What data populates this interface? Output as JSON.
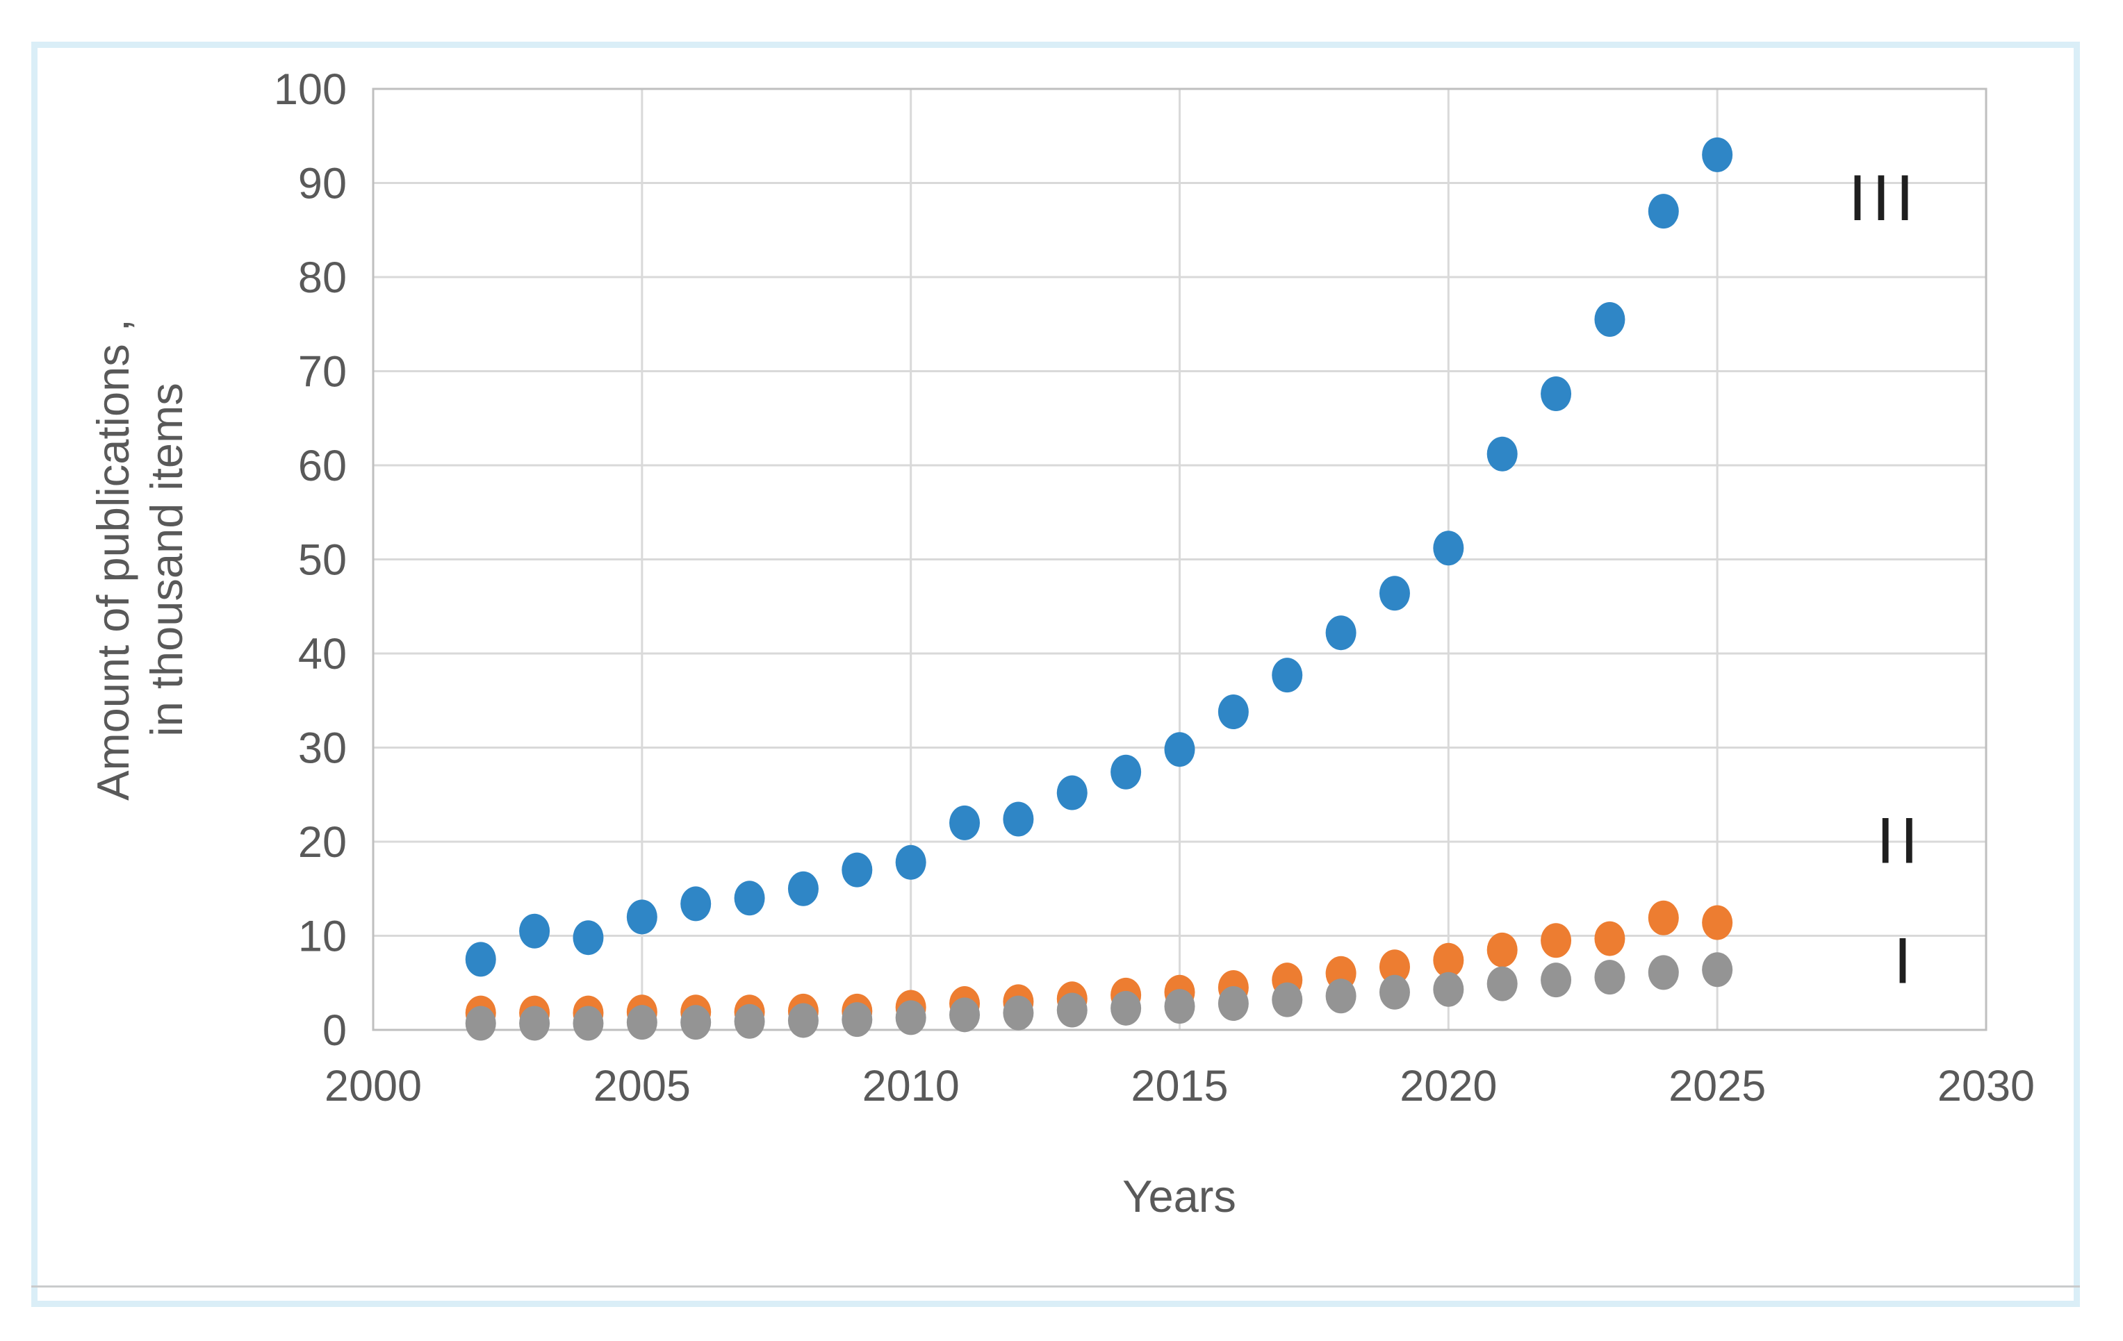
{
  "figure": {
    "frame_border_color": "#daeef7",
    "background_color": "#ffffff",
    "plot_border_color": "#bfbfbf",
    "gridline_color": "#d9d9d9",
    "tick_text_color": "#595959"
  },
  "chart_data": {
    "type": "scatter",
    "title": "",
    "xlabel": "Years",
    "ylabel_line1": "Amount of publications ,",
    "ylabel_line2": "in thousand items",
    "xlim": [
      2000,
      2030
    ],
    "ylim": [
      0,
      100
    ],
    "x_ticks": [
      2000,
      2005,
      2010,
      2015,
      2020,
      2025,
      2030
    ],
    "y_ticks": [
      0,
      10,
      20,
      30,
      40,
      50,
      60,
      70,
      80,
      90,
      100
    ],
    "grid": true,
    "legend_position": "none",
    "x": [
      2002,
      2003,
      2004,
      2005,
      2006,
      2007,
      2008,
      2009,
      2010,
      2011,
      2012,
      2013,
      2014,
      2015,
      2016,
      2017,
      2018,
      2019,
      2020,
      2021,
      2022,
      2023,
      2024,
      2025
    ],
    "series": [
      {
        "name": "III",
        "color": "#2f86c6",
        "values": [
          7.5,
          10.5,
          9.8,
          12,
          13.4,
          14,
          15,
          17,
          17.8,
          22,
          22.4,
          25.2,
          27.4,
          29.8,
          33.8,
          37.7,
          42.2,
          46.4,
          51.2,
          61.2,
          67.6,
          75.5,
          87,
          93
        ]
      },
      {
        "name": "II",
        "color": "#ed7d31",
        "values": [
          1.8,
          1.8,
          1.8,
          1.9,
          1.9,
          1.9,
          2,
          2,
          2.4,
          2.8,
          3,
          3.3,
          3.7,
          4,
          4.5,
          5.3,
          6,
          6.7,
          7.4,
          8.5,
          9.5,
          9.7,
          11.9,
          11.4
        ]
      },
      {
        "name": "I",
        "color": "#949494",
        "values": [
          0.7,
          0.7,
          0.7,
          0.8,
          0.8,
          0.9,
          1,
          1.1,
          1.3,
          1.6,
          1.8,
          2.1,
          2.3,
          2.5,
          2.8,
          3.2,
          3.6,
          4,
          4.3,
          4.9,
          5.3,
          5.6,
          6.1,
          6.4
        ]
      }
    ],
    "annotations": [
      {
        "text": "III",
        "x": 2028.1,
        "y": 88.5
      },
      {
        "text": "II",
        "x": 2028.4,
        "y": 20.2
      },
      {
        "text": "I",
        "x": 2028.5,
        "y": 7.4
      }
    ]
  }
}
